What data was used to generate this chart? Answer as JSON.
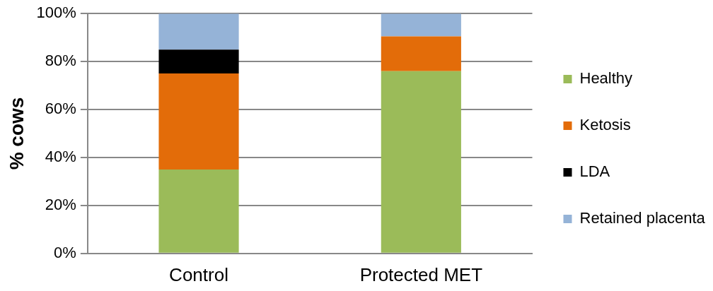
{
  "chart_data": {
    "type": "bar",
    "stacked": true,
    "ylabel": "% cows",
    "categories": [
      "Control",
      "Protected MET"
    ],
    "series": [
      {
        "name": "Healthy",
        "color": "#9bbb59",
        "values": [
          35,
          76
        ]
      },
      {
        "name": "Ketosis",
        "color": "#e36c09",
        "values": [
          40,
          14.5
        ]
      },
      {
        "name": "LDA",
        "color": "#000000",
        "values": [
          10,
          0
        ]
      },
      {
        "name": "Retained placenta",
        "color": "#95b3d7",
        "values": [
          15,
          9.5
        ]
      }
    ],
    "ylim": [
      0,
      100
    ],
    "yticks": [
      {
        "value": 0,
        "label": "0%"
      },
      {
        "value": 20,
        "label": "20%"
      },
      {
        "value": 40,
        "label": "40%"
      },
      {
        "value": 60,
        "label": "60%"
      },
      {
        "value": 80,
        "label": "80%"
      },
      {
        "value": 100,
        "label": "100%"
      }
    ],
    "grid": "y",
    "legend": "right"
  }
}
